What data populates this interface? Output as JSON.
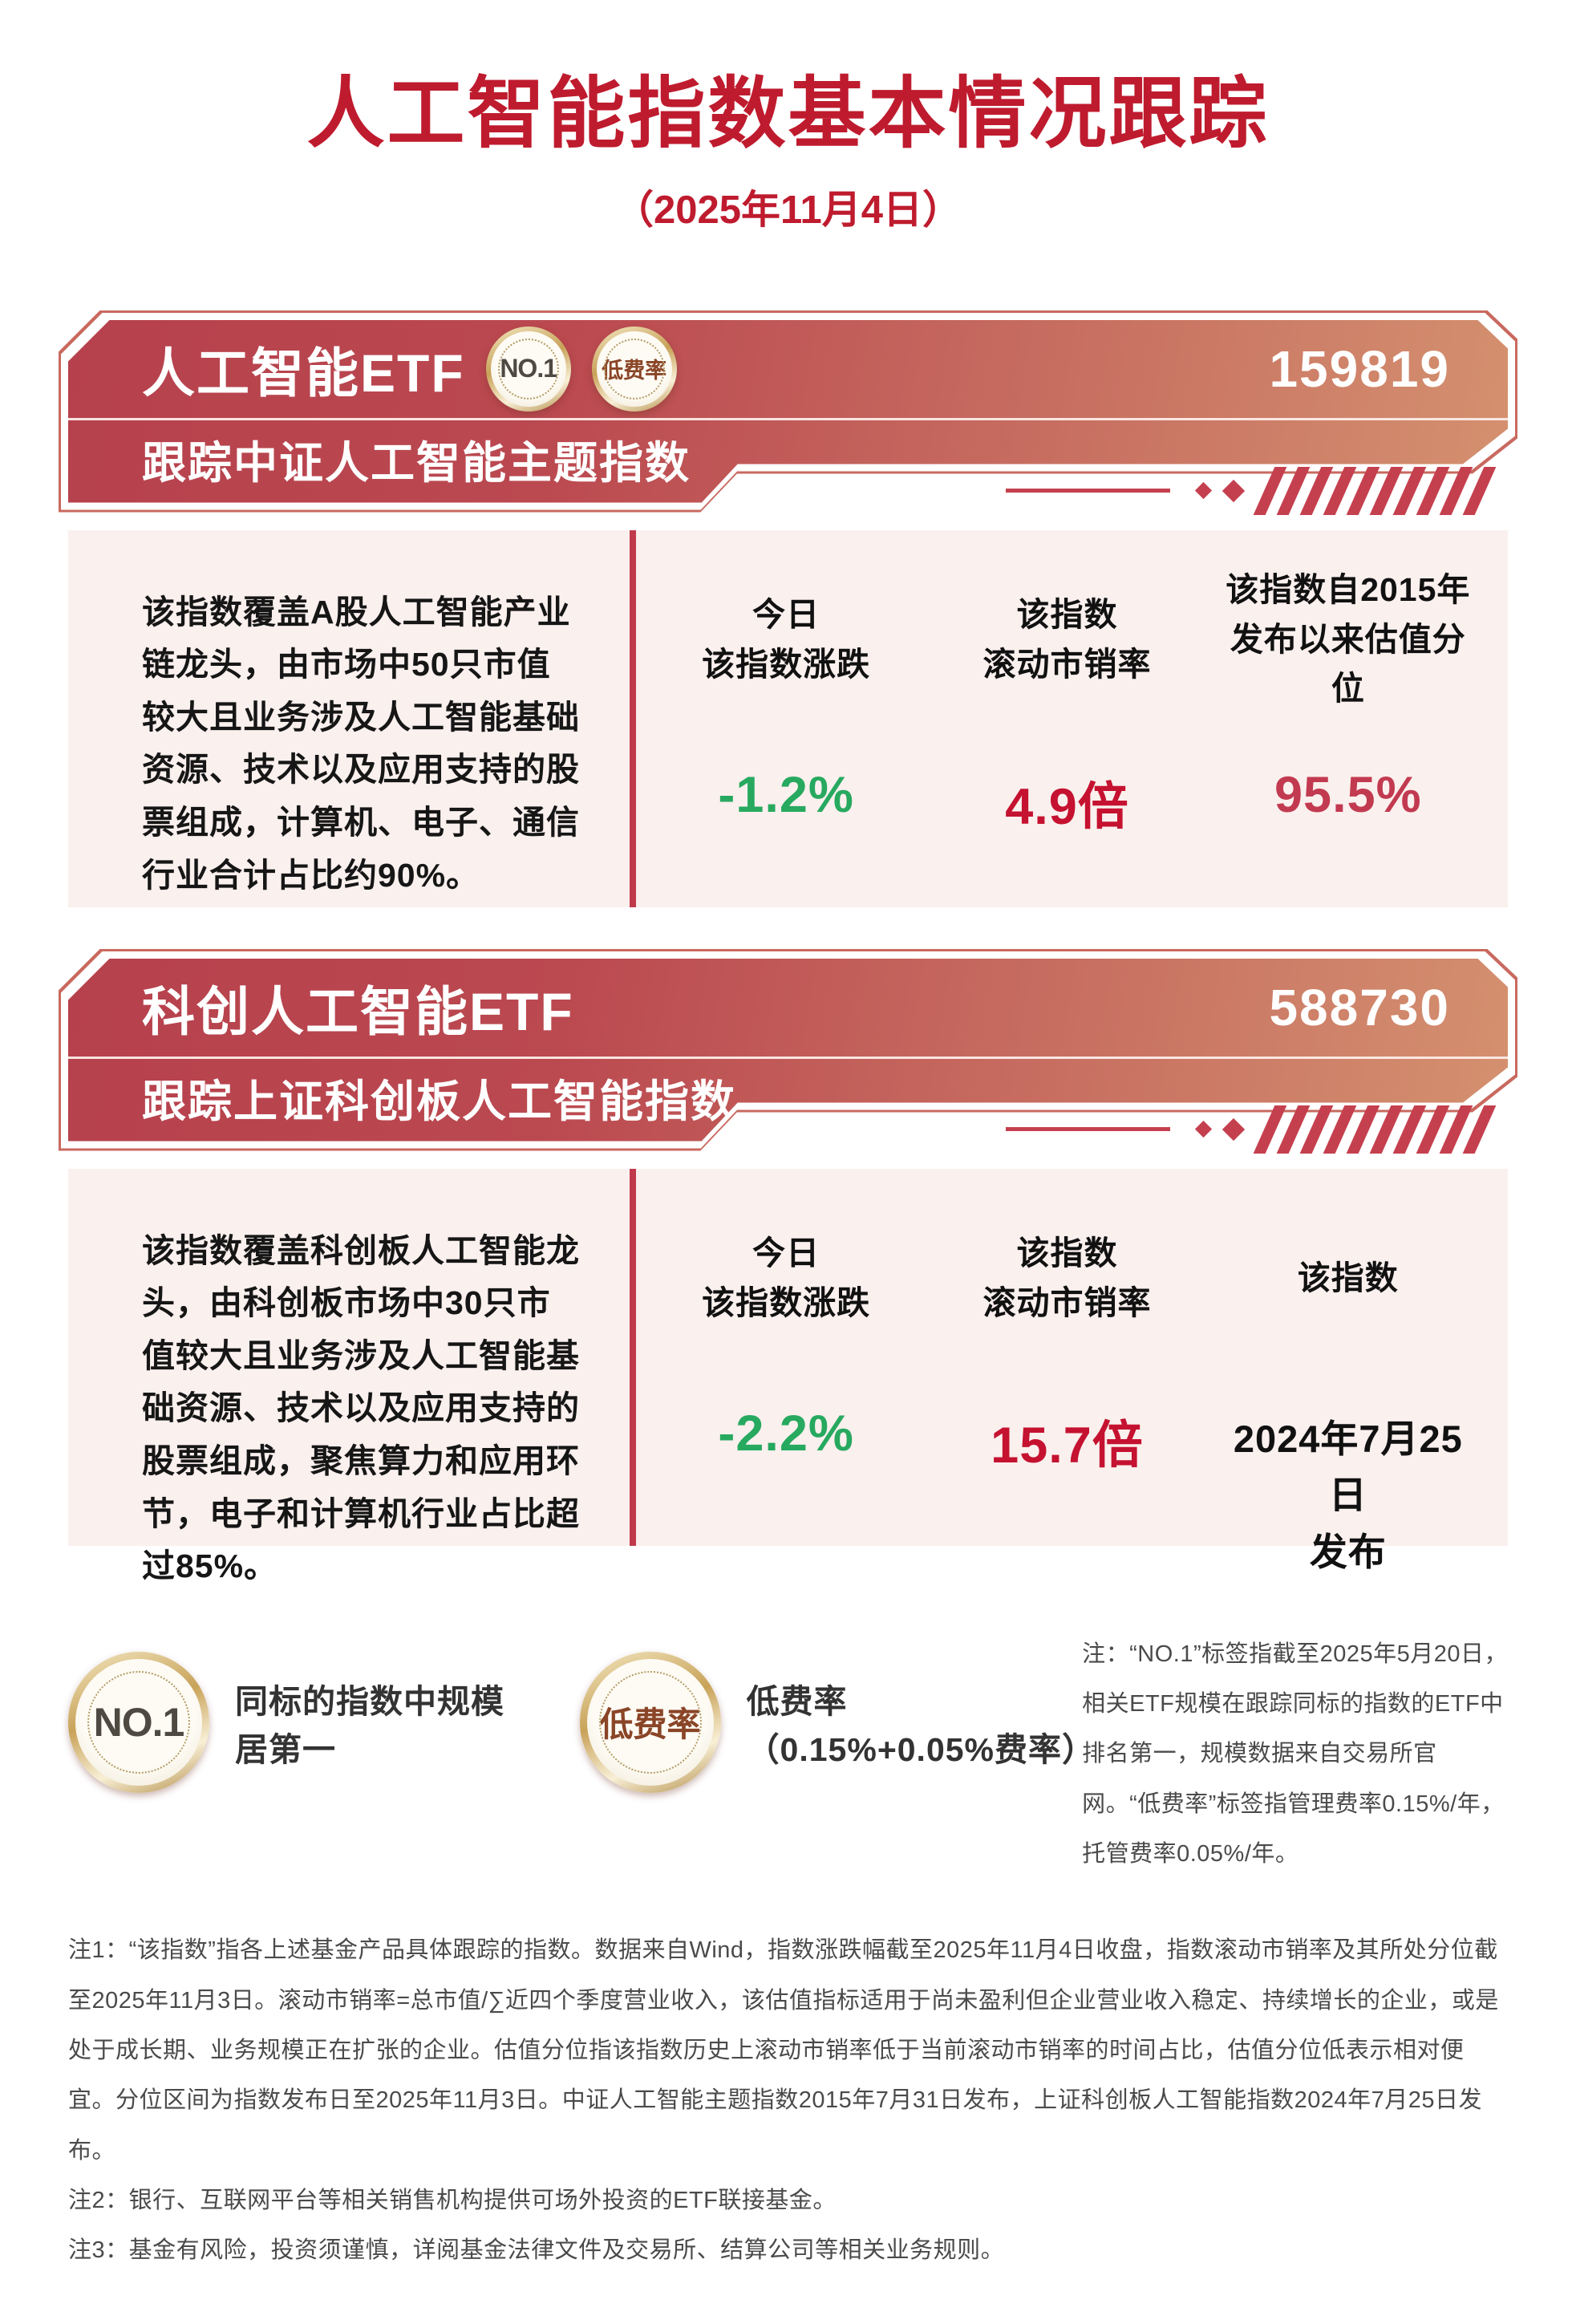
{
  "header": {
    "title": "人工智能指数基本情况跟踪",
    "date": "（2025年11月4日）"
  },
  "theme": {
    "accent_red": "#bf1b2e",
    "banner_gradient_start": "#b6414d",
    "banner_gradient_end": "#d4916f",
    "card_background": "#faf0ee",
    "positive_green": "#27a95f",
    "ratio_red": "#c51230",
    "percentile_red": "#c23a50",
    "badge_gold": "#c8a258"
  },
  "products": [
    {
      "name": "人工智能ETF",
      "code": "159819",
      "tracking": "跟踪中证人工智能主题指数",
      "badges": {
        "no1": "NO.1",
        "low_fee": "低费率"
      },
      "description": "该指数覆盖A股人工智能产业链龙头，由市场中50只市值较大且业务涉及人工智能基础资源、技术以及应用支持的股票组成，计算机、电子、通信行业合计占比约90%。",
      "metrics": [
        {
          "header_line1": "今日",
          "header_line2": "该指数涨跌",
          "value_line1": "-1.2%",
          "value_line2": "",
          "value_color": "#27a95f"
        },
        {
          "header_line1": "该指数",
          "header_line2": "滚动市销率",
          "value_line1": "4.9倍",
          "value_line2": "",
          "value_color": "#c51230"
        },
        {
          "header_line1": "该指数自2015年",
          "header_line2": "发布以来估值分位",
          "value_line1": "95.5%",
          "value_line2": "",
          "value_color": "#c23a50"
        }
      ]
    },
    {
      "name": "科创人工智能ETF",
      "code": "588730",
      "tracking": "跟踪上证科创板人工智能指数",
      "description": "该指数覆盖科创板人工智能龙头，由科创板市场中30只市值较大且业务涉及人工智能基础资源、技术以及应用支持的股票组成，聚焦算力和应用环节，电子和计算机行业占比超过85%。",
      "metrics": [
        {
          "header_line1": "今日",
          "header_line2": "该指数涨跌",
          "value_line1": "-2.2%",
          "value_line2": "",
          "value_color": "#27a95f"
        },
        {
          "header_line1": "该指数",
          "header_line2": "滚动市销率",
          "value_line1": "15.7倍",
          "value_line2": "",
          "value_color": "#c51230"
        },
        {
          "header_line1": "该指数",
          "header_line2": "",
          "value_line1": "2024年7月25日",
          "value_line2": "发布",
          "value_color": "#111111"
        }
      ]
    }
  ],
  "legend": {
    "no1_badge": "NO.1",
    "no1_text": "同标的指数中规模居第一",
    "low_fee_badge": "低费率",
    "low_fee_text": "低费率（0.15%+0.05%费率）",
    "side_note": "注：“NO.1”标签指截至2025年5月20日，相关ETF规模在跟踪同标的指数的ETF中排名第一，规模数据来自交易所官网。“低费率”标签指管理费率0.15%/年，托管费率0.05%/年。"
  },
  "footnotes": [
    "注1：“该指数”指各上述基金产品具体跟踪的指数。数据来自Wind，指数涨跌幅截至2025年11月4日收盘，指数滚动市销率及其所处分位截至2025年11月3日。滚动市销率=总市值/∑近四个季度营业收入，该估值指标适用于尚未盈利但企业营业收入稳定、持续增长的企业，或是处于成长期、业务规模正在扩张的企业。估值分位指该指数历史上滚动市销率低于当前滚动市销率的时间占比，估值分位低表示相对便宜。分位区间为指数发布日至2025年11月3日。中证人工智能主题指数2015年7月31日发布，上证科创板人工智能指数2024年7月25日发布。",
    "注2：银行、互联网平台等相关销售机构提供可场外投资的ETF联接基金。",
    "注3：基金有风险，投资须谨慎，详阅基金法律文件及交易所、结算公司等相关业务规则。"
  ]
}
